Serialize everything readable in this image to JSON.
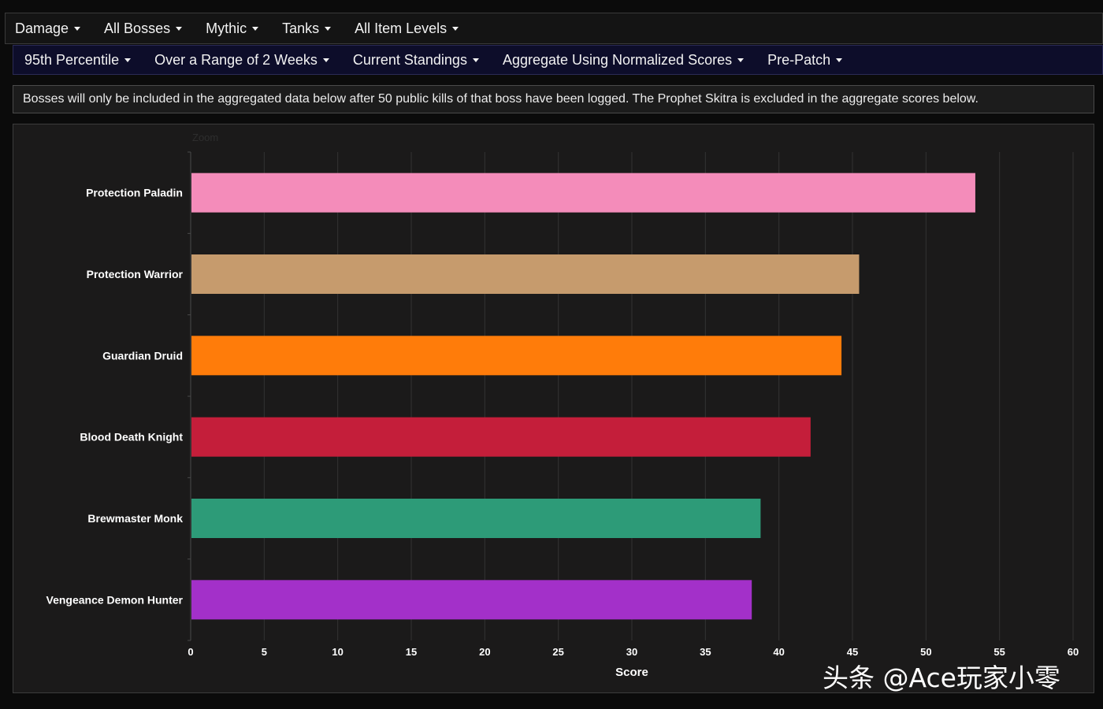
{
  "filters_row1": [
    {
      "label": "Damage"
    },
    {
      "label": "All Bosses"
    },
    {
      "label": "Mythic"
    },
    {
      "label": "Tanks"
    },
    {
      "label": "All Item Levels"
    }
  ],
  "filters_row2": [
    {
      "label": "95th Percentile"
    },
    {
      "label": "Over a Range of 2 Weeks"
    },
    {
      "label": "Current Standings"
    },
    {
      "label": "Aggregate Using Normalized Scores"
    },
    {
      "label": "Pre-Patch"
    }
  ],
  "notice": "Bosses will only be included in the aggregated data below after 50 public kills of that boss have been logged. The Prophet Skitra is excluded in the aggregate scores below.",
  "chart": {
    "zoom_label": "Zoom"
  },
  "chart_data": {
    "type": "bar",
    "orientation": "horizontal",
    "categories": [
      "Protection Paladin",
      "Protection Warrior",
      "Guardian Druid",
      "Blood Death Knight",
      "Brewmaster Monk",
      "Vengeance Demon Hunter"
    ],
    "values": [
      53.3,
      45.4,
      44.2,
      42.1,
      38.7,
      38.1
    ],
    "colors": [
      "#f48cba",
      "#c69b6d",
      "#ff7c0a",
      "#c41e3a",
      "#2d9b78",
      "#a330c9"
    ],
    "xlabel": "Score",
    "xlim": [
      0,
      60
    ],
    "xticks": [
      0,
      5,
      10,
      15,
      20,
      25,
      30,
      35,
      40,
      45,
      50,
      55,
      60
    ],
    "grid": true
  },
  "watermark": "头条 @Ace玩家小零"
}
